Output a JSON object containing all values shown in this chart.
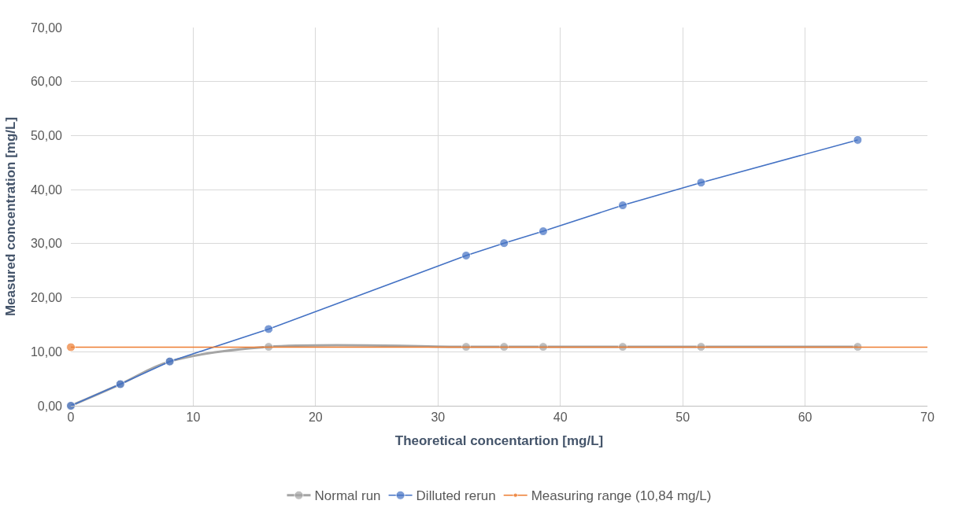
{
  "chart_data": {
    "type": "line",
    "xlabel": "Theoretical concentartion [mg/L]",
    "ylabel": "Measured concentration [mg/L]",
    "xlim": [
      0,
      70
    ],
    "xticks": [
      0,
      10,
      20,
      30,
      40,
      50,
      60,
      70
    ],
    "ylim": [
      0,
      70
    ],
    "yticks": [
      {
        "value": 0,
        "label": "0,00"
      },
      {
        "value": 10,
        "label": "10,00"
      },
      {
        "value": 20,
        "label": "20,00"
      },
      {
        "value": 30,
        "label": "30,00"
      },
      {
        "value": 40,
        "label": "40,00"
      },
      {
        "value": 50,
        "label": "50,00"
      },
      {
        "value": 60,
        "label": "60,00"
      },
      {
        "value": 70,
        "label": "70,00"
      }
    ],
    "grid": true,
    "legend": "bottom",
    "marker": "circle",
    "series": [
      {
        "name": "Normal run",
        "color": "#a5a5a5",
        "x": [
          0,
          4.04,
          8.08,
          16.16,
          32.3,
          35.4,
          38.6,
          45.1,
          51.5,
          64.3
        ],
        "values": [
          0,
          4.0,
          8.2,
          10.9,
          10.9,
          10.9,
          10.9,
          10.9,
          10.9,
          10.9
        ]
      },
      {
        "name": "Dilluted rerun",
        "color": "#4472c4",
        "x": [
          0,
          4.04,
          8.08,
          16.16,
          32.3,
          35.4,
          38.6,
          45.1,
          51.5,
          64.3
        ],
        "values": [
          0,
          4.0,
          8.2,
          14.2,
          27.8,
          30.1,
          32.3,
          37.1,
          41.3,
          49.2
        ]
      },
      {
        "name": "Measuring range (10,84 mg/L)",
        "color": "#ed7d31",
        "x": [
          0,
          70
        ],
        "values": [
          10.84,
          10.84
        ]
      }
    ]
  }
}
